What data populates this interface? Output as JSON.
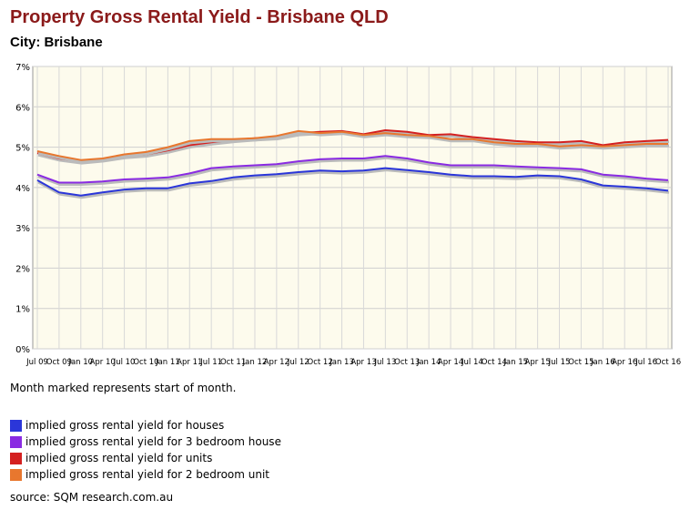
{
  "header": {
    "title": "Property Gross Rental Yield - Brisbane QLD",
    "city": "City: Brisbane"
  },
  "note": "Month marked represents start of month.",
  "source": "source: SQM research.com.au",
  "chart_data": {
    "type": "line",
    "title": "Property Gross Rental Yield - Brisbane QLD",
    "subtitle": "City: Brisbane",
    "xlabel": "",
    "ylabel": "",
    "ylim": [
      0,
      7
    ],
    "y_ticks": [
      "0%",
      "1%",
      "2%",
      "3%",
      "4%",
      "5%",
      "6%",
      "7%"
    ],
    "grid": true,
    "legend_position": "bottom",
    "x_ticks": [
      "Jul 09",
      "Oct 09",
      "Jan 10",
      "Apr 10",
      "Jul 10",
      "Oct 10",
      "Jan 11",
      "Apr 11",
      "Jul 11",
      "Oct 11",
      "Jan 12",
      "Apr 12",
      "Jul 12",
      "Oct 12",
      "Jan 13",
      "Apr 13",
      "Jul 13",
      "Oct 13",
      "Jan 14",
      "Apr 14",
      "Jul 14",
      "Oct 14",
      "Jan 15",
      "Apr 15",
      "Jul 15",
      "Oct 15",
      "Jan 16",
      "Apr 16",
      "Jul 16",
      "Oct 16"
    ],
    "series": [
      {
        "name": "implied gross rental yield for houses",
        "color": "#2b36d9",
        "values": [
          4.18,
          3.88,
          3.8,
          3.88,
          3.95,
          3.98,
          3.98,
          4.1,
          4.16,
          4.25,
          4.3,
          4.33,
          4.38,
          4.42,
          4.4,
          4.42,
          4.48,
          4.43,
          4.38,
          4.32,
          4.28,
          4.28,
          4.26,
          4.3,
          4.28,
          4.2,
          4.05,
          4.02,
          3.98,
          3.92
        ]
      },
      {
        "name": "implied gross rental yield for 3 bedroom house",
        "color": "#8a2be2",
        "values": [
          4.32,
          4.12,
          4.12,
          4.15,
          4.2,
          4.22,
          4.25,
          4.35,
          4.48,
          4.52,
          4.55,
          4.58,
          4.65,
          4.7,
          4.72,
          4.72,
          4.78,
          4.72,
          4.62,
          4.55,
          4.55,
          4.55,
          4.52,
          4.5,
          4.48,
          4.45,
          4.32,
          4.28,
          4.22,
          4.18
        ]
      },
      {
        "name": "implied gross rental yield for units",
        "color": "#d42020",
        "values": [
          4.85,
          4.72,
          4.65,
          4.7,
          4.78,
          4.82,
          4.92,
          5.05,
          5.12,
          5.18,
          5.22,
          5.25,
          5.35,
          5.38,
          5.4,
          5.32,
          5.42,
          5.38,
          5.3,
          5.32,
          5.25,
          5.2,
          5.15,
          5.12,
          5.12,
          5.15,
          5.05,
          5.12,
          5.15,
          5.18
        ]
      },
      {
        "name": "implied gross rental yield for 2 bedroom unit",
        "color": "#e8772e",
        "values": [
          4.9,
          4.78,
          4.68,
          4.72,
          4.82,
          4.88,
          5.0,
          5.15,
          5.2,
          5.2,
          5.22,
          5.28,
          5.4,
          5.35,
          5.38,
          5.3,
          5.35,
          5.3,
          5.28,
          5.2,
          5.2,
          5.12,
          5.08,
          5.08,
          5.02,
          5.05,
          5.02,
          5.05,
          5.08,
          5.08
        ]
      }
    ]
  }
}
